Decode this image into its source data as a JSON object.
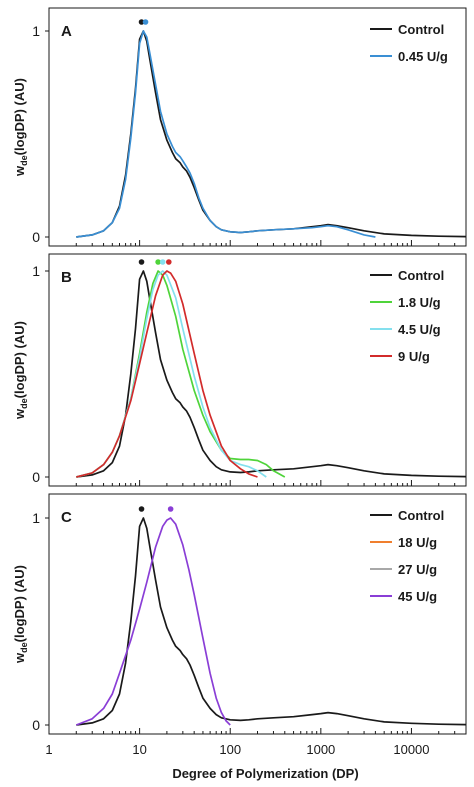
{
  "chart_data": [
    {
      "type": "line",
      "panel_label": "A",
      "ylabel_main": "w",
      "ylabel_sub": "de",
      "ylabel_rest": "(logDP) (AU)",
      "y_ticks": [
        "0",
        "1"
      ],
      "ylim": [
        0,
        1
      ],
      "xlim": [
        1,
        40000
      ],
      "x_scale": "log",
      "legend_position": "top-right",
      "series": [
        {
          "name": "Control",
          "color": "#1a1a1a",
          "peak_dp": 10.5,
          "x": [
            2,
            3,
            4,
            5,
            6,
            7,
            8,
            9,
            10,
            11,
            12,
            13,
            15,
            17,
            20,
            23,
            25,
            28,
            30,
            33,
            36,
            40,
            45,
            50,
            60,
            70,
            80,
            100,
            130,
            160,
            200,
            300,
            500,
            800,
            1000,
            1200,
            1500,
            2000,
            3000,
            5000,
            10000,
            20000,
            40000
          ],
          "y": [
            0,
            0.01,
            0.03,
            0.07,
            0.15,
            0.3,
            0.5,
            0.72,
            0.96,
            1.0,
            0.95,
            0.86,
            0.7,
            0.57,
            0.47,
            0.41,
            0.38,
            0.36,
            0.34,
            0.32,
            0.29,
            0.24,
            0.18,
            0.13,
            0.08,
            0.05,
            0.035,
            0.025,
            0.022,
            0.025,
            0.03,
            0.035,
            0.04,
            0.05,
            0.055,
            0.06,
            0.055,
            0.045,
            0.03,
            0.015,
            0.008,
            0.004,
            0.002
          ]
        },
        {
          "name": "0.45 U/g",
          "color": "#3a8fd4",
          "peak_dp": 11,
          "x": [
            2,
            3,
            4,
            5,
            6,
            7,
            8,
            9,
            10,
            11,
            12,
            13,
            15,
            17,
            20,
            23,
            25,
            28,
            30,
            33,
            36,
            40,
            45,
            50,
            60,
            70,
            80,
            100,
            130,
            160,
            200,
            300,
            500,
            800,
            1000,
            1200,
            1500,
            2000,
            3000,
            4000
          ],
          "y": [
            0,
            0.01,
            0.03,
            0.07,
            0.14,
            0.28,
            0.48,
            0.7,
            0.94,
            1.0,
            0.97,
            0.89,
            0.74,
            0.61,
            0.5,
            0.44,
            0.41,
            0.39,
            0.37,
            0.34,
            0.31,
            0.26,
            0.19,
            0.14,
            0.08,
            0.05,
            0.035,
            0.025,
            0.022,
            0.025,
            0.03,
            0.035,
            0.04,
            0.045,
            0.05,
            0.055,
            0.05,
            0.035,
            0.01,
            0
          ]
        }
      ]
    },
    {
      "type": "line",
      "panel_label": "B",
      "ylabel_main": "w",
      "ylabel_sub": "de",
      "ylabel_rest": "(logDP) (AU)",
      "y_ticks": [
        "0",
        "1"
      ],
      "ylim": [
        0,
        1
      ],
      "xlim": [
        1,
        40000
      ],
      "x_scale": "log",
      "legend_position": "top-right",
      "series": [
        {
          "name": "Control",
          "color": "#1a1a1a",
          "peak_dp": 10.5,
          "x": [
            2,
            3,
            4,
            5,
            6,
            7,
            8,
            9,
            10,
            11,
            12,
            13,
            15,
            17,
            20,
            23,
            25,
            28,
            30,
            33,
            36,
            40,
            45,
            50,
            60,
            70,
            80,
            100,
            130,
            160,
            200,
            300,
            500,
            800,
            1000,
            1200,
            1500,
            2000,
            3000,
            5000,
            10000,
            20000,
            40000
          ],
          "y": [
            0,
            0.01,
            0.03,
            0.07,
            0.15,
            0.3,
            0.5,
            0.72,
            0.96,
            1.0,
            0.95,
            0.86,
            0.7,
            0.57,
            0.47,
            0.41,
            0.38,
            0.36,
            0.34,
            0.32,
            0.29,
            0.24,
            0.18,
            0.13,
            0.08,
            0.05,
            0.035,
            0.025,
            0.022,
            0.025,
            0.03,
            0.035,
            0.04,
            0.05,
            0.055,
            0.06,
            0.055,
            0.045,
            0.03,
            0.015,
            0.008,
            0.004,
            0.002
          ]
        },
        {
          "name": "1.8 U/g",
          "color": "#4fd43a",
          "peak_dp": 16,
          "x": [
            2,
            3,
            4,
            5,
            6,
            8,
            10,
            12,
            14,
            16,
            18,
            20,
            25,
            30,
            40,
            50,
            60,
            80,
            100,
            130,
            160,
            200,
            250,
            300,
            400
          ],
          "y": [
            0,
            0.02,
            0.06,
            0.12,
            0.2,
            0.38,
            0.6,
            0.8,
            0.94,
            1.0,
            0.98,
            0.93,
            0.78,
            0.62,
            0.42,
            0.3,
            0.22,
            0.13,
            0.09,
            0.085,
            0.085,
            0.08,
            0.06,
            0.03,
            0
          ]
        },
        {
          "name": "4.5 U/g",
          "color": "#84e0ee",
          "peak_dp": 18,
          "x": [
            2,
            3,
            4,
            5,
            6,
            8,
            10,
            12,
            14,
            16,
            18,
            20,
            25,
            30,
            40,
            50,
            60,
            80,
            100,
            130,
            160,
            200,
            250
          ],
          "y": [
            0,
            0.02,
            0.06,
            0.12,
            0.2,
            0.38,
            0.58,
            0.77,
            0.91,
            0.98,
            1.0,
            0.98,
            0.87,
            0.72,
            0.49,
            0.34,
            0.24,
            0.13,
            0.08,
            0.06,
            0.05,
            0.03,
            0
          ]
        },
        {
          "name": "9 U/g",
          "color": "#d22b2b",
          "peak_dp": 21,
          "x": [
            2,
            3,
            4,
            5,
            6,
            8,
            10,
            12,
            15,
            18,
            20,
            22,
            25,
            30,
            40,
            50,
            60,
            80,
            100,
            130,
            160,
            200
          ],
          "y": [
            0,
            0.02,
            0.06,
            0.12,
            0.2,
            0.37,
            0.55,
            0.7,
            0.88,
            0.98,
            1.0,
            0.99,
            0.95,
            0.84,
            0.6,
            0.42,
            0.3,
            0.15,
            0.08,
            0.04,
            0.015,
            0
          ]
        }
      ]
    },
    {
      "type": "line",
      "panel_label": "C",
      "ylabel_main": "w",
      "ylabel_sub": "de",
      "ylabel_rest": "(logDP) (AU)",
      "y_ticks": [
        "0",
        "1"
      ],
      "ylim": [
        0,
        1
      ],
      "xlim": [
        1,
        40000
      ],
      "x_scale": "log",
      "xlabel": "Degree of Polymerization (DP)",
      "x_tick_labels": [
        "1",
        "10",
        "100",
        "1000",
        "10000"
      ],
      "legend_position": "top-right",
      "series": [
        {
          "name": "Control",
          "color": "#1a1a1a",
          "peak_dp": 10.5,
          "x": [
            2,
            3,
            4,
            5,
            6,
            7,
            8,
            9,
            10,
            11,
            12,
            13,
            15,
            17,
            20,
            23,
            25,
            28,
            30,
            33,
            36,
            40,
            45,
            50,
            60,
            70,
            80,
            100,
            130,
            160,
            200,
            300,
            500,
            800,
            1000,
            1200,
            1500,
            2000,
            3000,
            5000,
            10000,
            20000,
            40000
          ],
          "y": [
            0,
            0.01,
            0.03,
            0.07,
            0.15,
            0.3,
            0.5,
            0.72,
            0.96,
            1.0,
            0.95,
            0.86,
            0.7,
            0.57,
            0.47,
            0.41,
            0.38,
            0.36,
            0.34,
            0.32,
            0.29,
            0.24,
            0.18,
            0.13,
            0.08,
            0.05,
            0.035,
            0.025,
            0.022,
            0.025,
            0.03,
            0.035,
            0.04,
            0.05,
            0.055,
            0.06,
            0.055,
            0.045,
            0.03,
            0.015,
            0.008,
            0.004,
            0.002
          ]
        },
        {
          "name": "18 U/g",
          "color": "#f07f2e",
          "peak_dp": null,
          "x": [],
          "y": []
        },
        {
          "name": "27 U/g",
          "color": "#a8a8a8",
          "peak_dp": null,
          "x": [],
          "y": []
        },
        {
          "name": "45 U/g",
          "color": "#8a3ed6",
          "peak_dp": 22,
          "x": [
            2,
            3,
            4,
            5,
            6,
            8,
            10,
            12,
            15,
            18,
            20,
            22,
            25,
            30,
            35,
            40,
            50,
            60,
            70,
            80,
            90,
            100
          ],
          "y": [
            0,
            0.03,
            0.08,
            0.15,
            0.25,
            0.41,
            0.56,
            0.69,
            0.86,
            0.96,
            0.99,
            1.0,
            0.97,
            0.87,
            0.75,
            0.63,
            0.42,
            0.25,
            0.13,
            0.06,
            0.02,
            0
          ]
        }
      ]
    }
  ]
}
